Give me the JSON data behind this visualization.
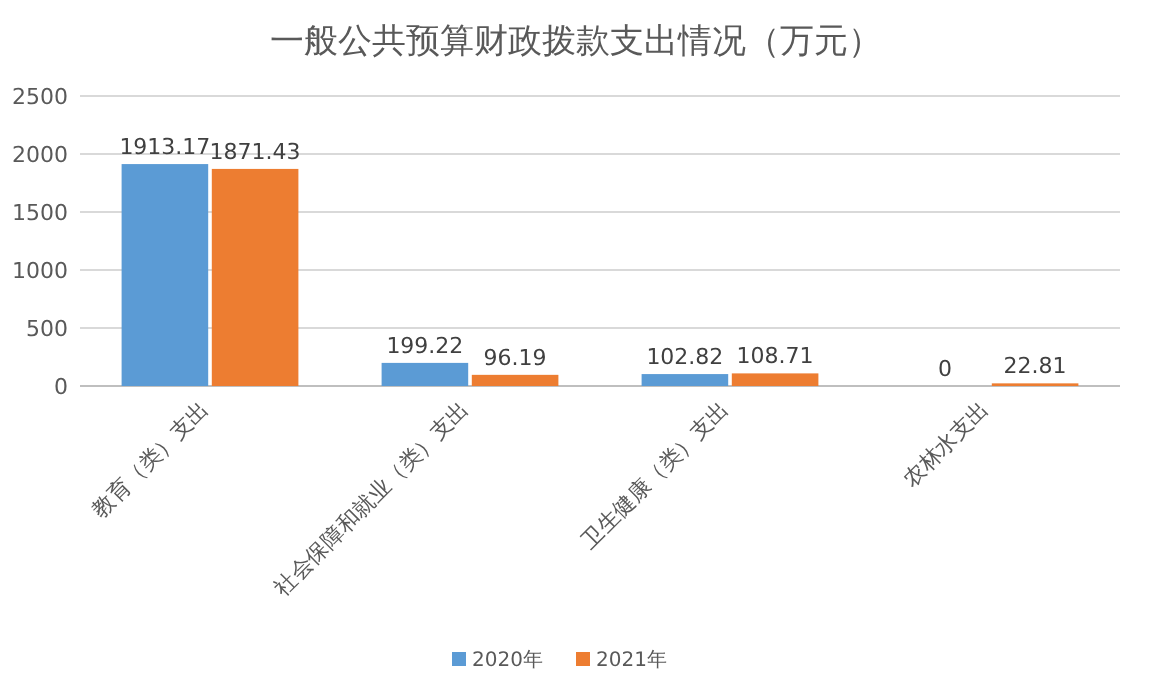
{
  "chart_data": {
    "type": "bar",
    "title": "一般公共预算财政拨款支出情况（万元）",
    "categories": [
      "教育（类）支出",
      "社会保障和就业（类）支出",
      "卫生健康（类）支出",
      "农林水支出"
    ],
    "series": [
      {
        "name": "2020年",
        "color": "#5b9bd5",
        "values": [
          1913.17,
          199.22,
          102.82,
          0
        ]
      },
      {
        "name": "2021年",
        "color": "#ed7d31",
        "values": [
          1871.43,
          96.19,
          108.71,
          22.81
        ]
      }
    ],
    "ylim": [
      0,
      2500
    ],
    "yticks": [
      0,
      500,
      1000,
      1500,
      2000,
      2500
    ],
    "grid": "y",
    "legend": "bottom",
    "data_labels": true
  }
}
